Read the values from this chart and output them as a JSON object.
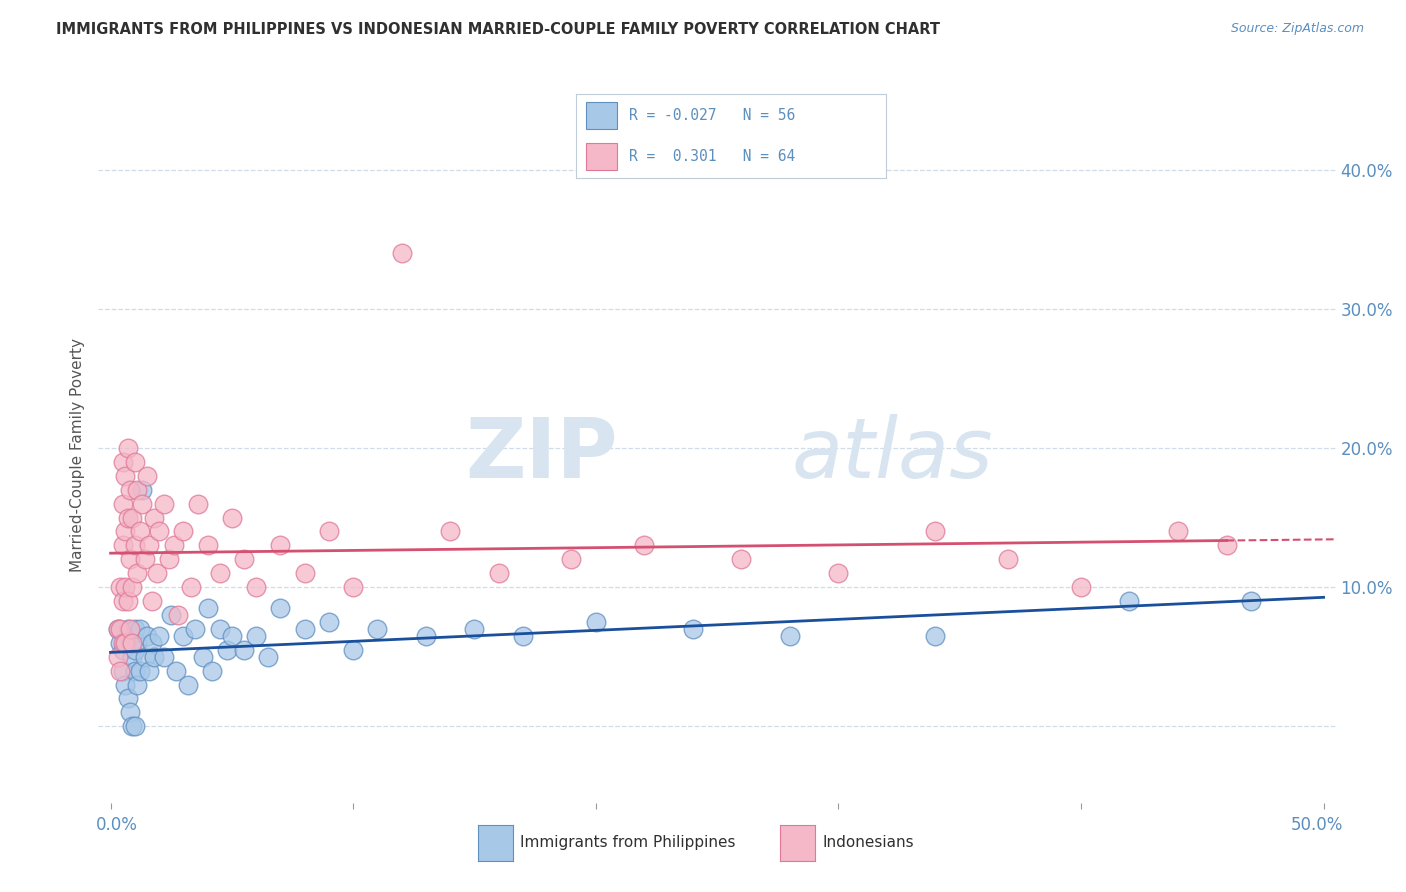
{
  "title": "IMMIGRANTS FROM PHILIPPINES VS INDONESIAN MARRIED-COUPLE FAMILY POVERTY CORRELATION CHART",
  "source": "Source: ZipAtlas.com",
  "ylabel": "Married-Couple Family Poverty",
  "ylim": [
    -0.055,
    0.445
  ],
  "xlim": [
    -0.005,
    0.505
  ],
  "blue_color": "#a8c8e8",
  "pink_color": "#f4b8c8",
  "blue_edge": "#6090c0",
  "pink_edge": "#e07898",
  "trend_blue": "#1a4f9c",
  "trend_pink": "#d45070",
  "title_color": "#303030",
  "axis_label_color": "#5b8fbe",
  "grid_color": "#d0dde8",
  "watermark_color": "#d8e5f0",
  "philippines_x": [
    0.003,
    0.004,
    0.005,
    0.005,
    0.006,
    0.006,
    0.007,
    0.007,
    0.008,
    0.008,
    0.009,
    0.009,
    0.01,
    0.01,
    0.01,
    0.01,
    0.011,
    0.011,
    0.012,
    0.012,
    0.013,
    0.014,
    0.015,
    0.016,
    0.017,
    0.018,
    0.02,
    0.022,
    0.025,
    0.027,
    0.03,
    0.032,
    0.035,
    0.038,
    0.04,
    0.042,
    0.045,
    0.048,
    0.05,
    0.055,
    0.06,
    0.065,
    0.07,
    0.08,
    0.09,
    0.1,
    0.11,
    0.13,
    0.15,
    0.17,
    0.2,
    0.24,
    0.28,
    0.34,
    0.42,
    0.47
  ],
  "philippines_y": [
    0.07,
    0.06,
    0.055,
    0.04,
    0.06,
    0.03,
    0.07,
    0.02,
    0.06,
    0.01,
    0.05,
    0.0,
    0.07,
    0.055,
    0.04,
    0.0,
    0.06,
    0.03,
    0.07,
    0.04,
    0.17,
    0.05,
    0.065,
    0.04,
    0.06,
    0.05,
    0.065,
    0.05,
    0.08,
    0.04,
    0.065,
    0.03,
    0.07,
    0.05,
    0.085,
    0.04,
    0.07,
    0.055,
    0.065,
    0.055,
    0.065,
    0.05,
    0.085,
    0.07,
    0.075,
    0.055,
    0.07,
    0.065,
    0.07,
    0.065,
    0.075,
    0.07,
    0.065,
    0.065,
    0.09,
    0.09
  ],
  "indonesian_x": [
    0.003,
    0.003,
    0.004,
    0.004,
    0.004,
    0.005,
    0.005,
    0.005,
    0.005,
    0.005,
    0.006,
    0.006,
    0.006,
    0.006,
    0.007,
    0.007,
    0.007,
    0.008,
    0.008,
    0.008,
    0.009,
    0.009,
    0.009,
    0.01,
    0.01,
    0.011,
    0.011,
    0.012,
    0.013,
    0.014,
    0.015,
    0.016,
    0.017,
    0.018,
    0.019,
    0.02,
    0.022,
    0.024,
    0.026,
    0.028,
    0.03,
    0.033,
    0.036,
    0.04,
    0.045,
    0.05,
    0.055,
    0.06,
    0.07,
    0.08,
    0.09,
    0.1,
    0.12,
    0.14,
    0.16,
    0.19,
    0.22,
    0.26,
    0.3,
    0.34,
    0.37,
    0.4,
    0.44,
    0.46
  ],
  "indonesian_y": [
    0.07,
    0.05,
    0.1,
    0.07,
    0.04,
    0.19,
    0.16,
    0.13,
    0.09,
    0.06,
    0.18,
    0.14,
    0.1,
    0.06,
    0.2,
    0.15,
    0.09,
    0.17,
    0.12,
    0.07,
    0.15,
    0.1,
    0.06,
    0.19,
    0.13,
    0.17,
    0.11,
    0.14,
    0.16,
    0.12,
    0.18,
    0.13,
    0.09,
    0.15,
    0.11,
    0.14,
    0.16,
    0.12,
    0.13,
    0.08,
    0.14,
    0.1,
    0.16,
    0.13,
    0.11,
    0.15,
    0.12,
    0.1,
    0.13,
    0.11,
    0.14,
    0.1,
    0.34,
    0.14,
    0.11,
    0.12,
    0.13,
    0.12,
    0.11,
    0.14,
    0.12,
    0.1,
    0.14,
    0.13
  ],
  "r_blue": -0.027,
  "n_blue": 56,
  "r_pink": 0.301,
  "n_pink": 64
}
